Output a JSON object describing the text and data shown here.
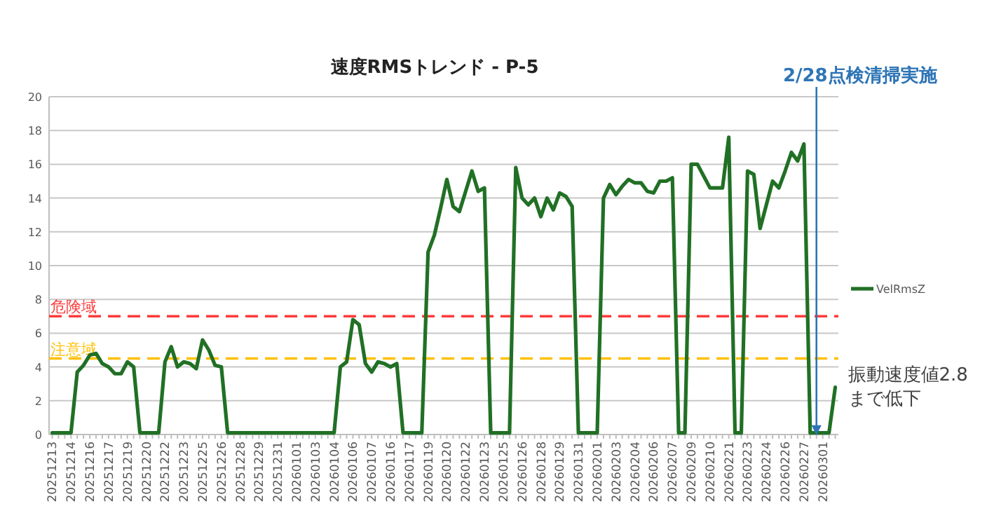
{
  "chart_data": {
    "type": "line",
    "title": "速度RMSトレンド - P-5",
    "categories": [
      "20251213",
      null,
      null,
      "20251214",
      null,
      null,
      "20251216",
      null,
      null,
      "20251217",
      null,
      null,
      "20251219",
      null,
      null,
      "20251220",
      null,
      null,
      "20251222",
      null,
      null,
      "20251223",
      null,
      null,
      "20251225",
      null,
      null,
      "20251226",
      null,
      null,
      "20251228",
      null,
      null,
      "20251229",
      null,
      null,
      "20251231",
      null,
      null,
      "20260101",
      null,
      null,
      "20260103",
      null,
      null,
      "20260104",
      null,
      null,
      "20260106",
      null,
      null,
      "20260107",
      null,
      null,
      "20260116",
      null,
      null,
      "20260117",
      null,
      null,
      "20260119",
      null,
      null,
      "20260120",
      null,
      null,
      "20260122",
      null,
      null,
      "20260123",
      null,
      null,
      "20260125",
      null,
      null,
      "20260126",
      null,
      null,
      "20260128",
      null,
      null,
      "20260129",
      null,
      null,
      "20260131",
      null,
      null,
      "20260201",
      null,
      null,
      "20260203",
      null,
      null,
      "20260204",
      null,
      null,
      "20260206",
      null,
      null,
      "20260207",
      null,
      null,
      "20260209",
      null,
      null,
      "20260210",
      null,
      null,
      "20260221",
      null,
      null,
      "20260223",
      null,
      null,
      "20260224",
      null,
      null,
      "20260226",
      null,
      null,
      "20260227",
      null,
      null,
      "20260301",
      null,
      null
    ],
    "series": [
      {
        "name": "VelRmsZ",
        "color": "#217025",
        "values": [
          0.1,
          0.1,
          0.1,
          0.1,
          3.7,
          4.1,
          4.7,
          4.8,
          4.2,
          4.0,
          3.6,
          3.6,
          4.3,
          4.0,
          0.1,
          0.1,
          0.1,
          0.1,
          4.3,
          5.2,
          4.0,
          4.3,
          4.2,
          3.9,
          5.6,
          5.0,
          4.1,
          4.0,
          0.1,
          0.1,
          0.1,
          0.1,
          0.1,
          0.1,
          0.1,
          0.1,
          0.1,
          0.1,
          0.1,
          0.1,
          0.1,
          0.1,
          0.1,
          0.1,
          0.1,
          0.1,
          4.0,
          4.3,
          6.8,
          6.5,
          4.2,
          3.7,
          4.3,
          4.2,
          4.0,
          4.2,
          0.1,
          0.1,
          0.1,
          0.1,
          10.8,
          11.8,
          13.4,
          15.1,
          13.5,
          13.2,
          14.4,
          15.6,
          14.4,
          14.6,
          0.1,
          0.1,
          0.1,
          0.1,
          15.8,
          14.0,
          13.6,
          14.0,
          12.9,
          14.0,
          13.3,
          14.3,
          14.1,
          13.5,
          0.1,
          0.1,
          0.1,
          0.1,
          14.0,
          14.8,
          14.2,
          14.7,
          15.1,
          14.9,
          14.9,
          14.4,
          14.3,
          15.0,
          15.0,
          15.2,
          0.1,
          0.1,
          16.0,
          16.0,
          15.3,
          14.6,
          14.6,
          14.6,
          17.6,
          0.1,
          0.1,
          15.6,
          15.4,
          12.2,
          13.6,
          15.0,
          14.6,
          15.6,
          16.7,
          16.2,
          17.2,
          0.1,
          0.1,
          0.1,
          0.1,
          2.8
        ]
      }
    ],
    "ylim": [
      0,
      20
    ],
    "yticks": [
      0,
      2,
      4,
      6,
      8,
      10,
      12,
      14,
      16,
      18,
      20
    ],
    "grid": "y",
    "legend": "right",
    "ref_lines": [
      {
        "axis": "y",
        "value": 7,
        "label": "危険域",
        "color": "#ff3b3b",
        "line_style": "dashed"
      },
      {
        "axis": "y",
        "value": 4.5,
        "label": "注意域",
        "color": "#ffc000",
        "line_style": "dashed"
      }
    ],
    "annotations": [
      "2/28点検清掃実施",
      "振動速度値2.8\nまで低下"
    ]
  }
}
